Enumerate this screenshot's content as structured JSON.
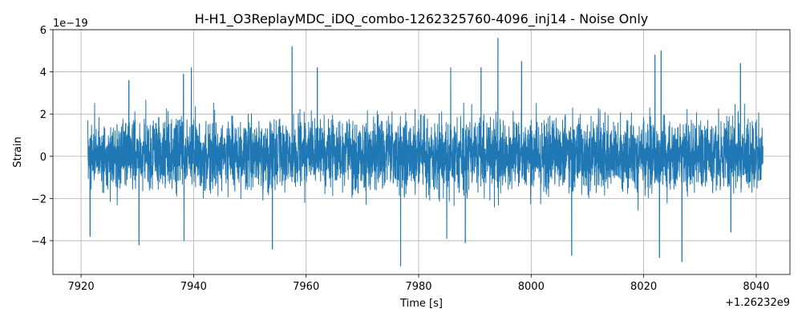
{
  "chart_data": {
    "type": "line",
    "title": "H-H1_O3ReplayMDC_iDQ_combo-1262325760-4096_inj14 - Noise Only",
    "xlabel": "Time [s]",
    "ylabel": "Strain",
    "x_offset_text": "+1.26232e9",
    "y_scale_text": "1e−19",
    "xlim": [
      7915,
      8046
    ],
    "ylim": [
      -5.6,
      6.0
    ],
    "x_ticks": [
      7920,
      7940,
      7960,
      7980,
      8000,
      8020,
      8040
    ],
    "x_tick_labels": [
      "7920",
      "7940",
      "7960",
      "7980",
      "8000",
      "8020",
      "8040"
    ],
    "y_ticks": [
      -4,
      -2,
      0,
      2,
      4,
      6
    ],
    "y_tick_labels": [
      "−4",
      "−2",
      "0",
      "2",
      "4",
      "6"
    ],
    "grid": true,
    "series": [
      {
        "color": "#1f77b4",
        "x_start": 7921.2,
        "x_end": 8041.2,
        "typical_range": [
          -2.0,
          2.2
        ],
        "peaks_max": [
          {
            "x": 7928.5,
            "y": 3.6
          },
          {
            "x": 7938.2,
            "y": 3.9
          },
          {
            "x": 7939.6,
            "y": 4.2
          },
          {
            "x": 7957.5,
            "y": 5.2
          },
          {
            "x": 7962.0,
            "y": 4.2
          },
          {
            "x": 7985.7,
            "y": 4.2
          },
          {
            "x": 7991.1,
            "y": 4.2
          },
          {
            "x": 7994.1,
            "y": 5.6
          },
          {
            "x": 7998.3,
            "y": 4.5
          },
          {
            "x": 8022.0,
            "y": 4.8
          },
          {
            "x": 8023.1,
            "y": 5.0
          },
          {
            "x": 8037.2,
            "y": 4.4
          }
        ],
        "peaks_min": [
          {
            "x": 7921.6,
            "y": -3.8
          },
          {
            "x": 7930.3,
            "y": -4.2
          },
          {
            "x": 7938.3,
            "y": -4.0
          },
          {
            "x": 7954.0,
            "y": -4.4
          },
          {
            "x": 7976.8,
            "y": -5.2
          },
          {
            "x": 7985.0,
            "y": -3.9
          },
          {
            "x": 7988.3,
            "y": -4.1
          },
          {
            "x": 8007.2,
            "y": -4.7
          },
          {
            "x": 8022.8,
            "y": -4.8
          },
          {
            "x": 8026.8,
            "y": -5.0
          },
          {
            "x": 8035.5,
            "y": -3.6
          }
        ]
      }
    ]
  }
}
